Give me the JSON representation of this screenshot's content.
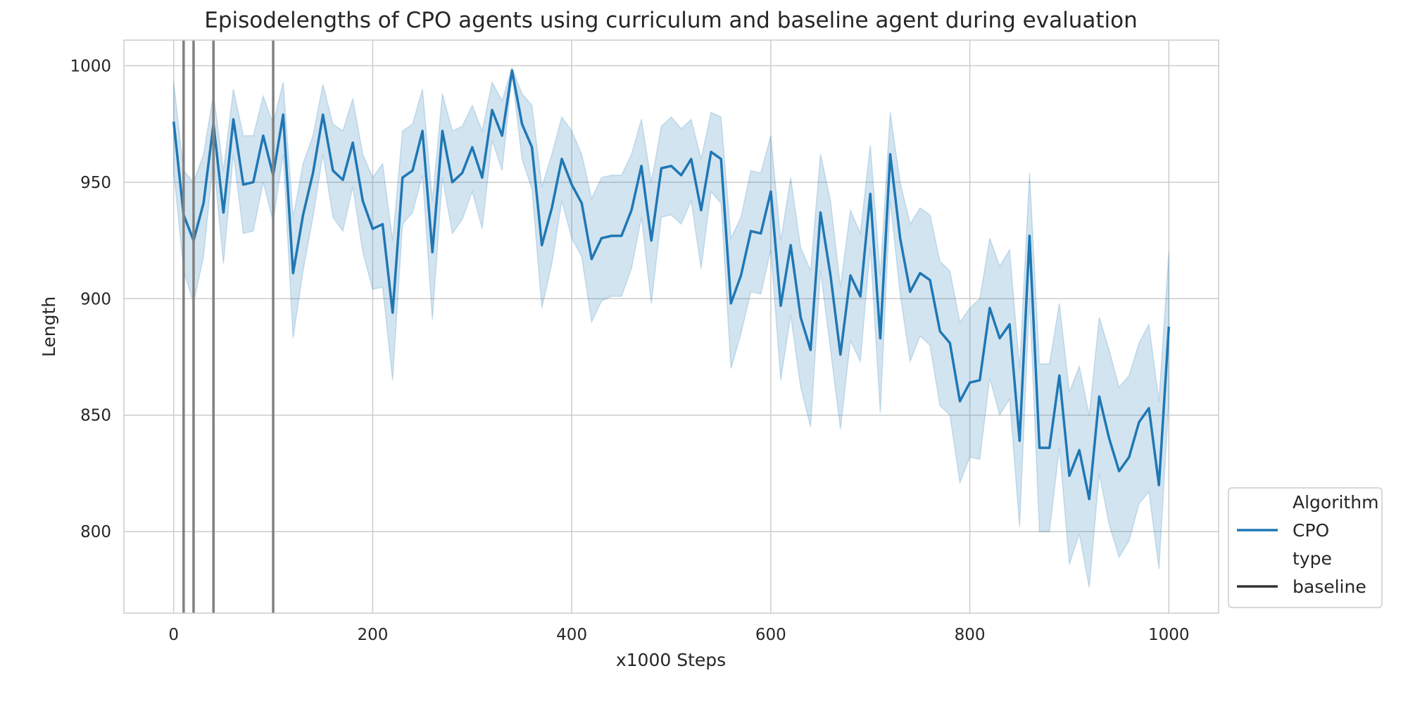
{
  "chart_data": {
    "type": "line",
    "title": "Episodelengths of CPO agents using curriculum and baseline agent during evaluation",
    "xlabel": "x1000 Steps",
    "ylabel": "Length",
    "xlim": [
      -50,
      1050
    ],
    "ylim": [
      765,
      1011
    ],
    "xticks": [
      0,
      200,
      400,
      600,
      800,
      1000
    ],
    "yticks": [
      800,
      850,
      900,
      950,
      1000
    ],
    "grid": true,
    "legend": {
      "position": "lower-right-outside",
      "entries": [
        {
          "label": "Algorithm",
          "kind": "header"
        },
        {
          "label": "CPO",
          "kind": "line",
          "color": "#1f77b4"
        },
        {
          "label": "type",
          "kind": "header"
        },
        {
          "label": "baseline",
          "kind": "line",
          "color": "#333333"
        }
      ]
    },
    "vlines": {
      "x": [
        10,
        20,
        40,
        100
      ],
      "color": "#808080"
    },
    "series": [
      {
        "name": "CPO",
        "color": "#1f77b4",
        "band_color": "#1f77b4",
        "x": [
          0,
          10,
          20,
          30,
          40,
          50,
          60,
          70,
          80,
          90,
          100,
          110,
          120,
          130,
          140,
          150,
          160,
          170,
          180,
          190,
          200,
          210,
          220,
          230,
          240,
          250,
          260,
          270,
          280,
          290,
          300,
          310,
          320,
          330,
          340,
          350,
          360,
          370,
          380,
          390,
          400,
          410,
          420,
          430,
          440,
          450,
          460,
          470,
          480,
          490,
          500,
          510,
          520,
          530,
          540,
          550,
          560,
          570,
          580,
          590,
          600,
          610,
          620,
          630,
          640,
          650,
          660,
          670,
          680,
          690,
          700,
          710,
          720,
          730,
          740,
          750,
          760,
          770,
          780,
          790,
          800,
          810,
          820,
          830,
          840,
          850,
          860,
          870,
          880,
          890,
          900,
          910,
          920,
          930,
          940,
          950,
          960,
          970,
          980,
          990,
          1000
        ],
        "values": [
          976,
          936,
          925,
          941,
          975,
          937,
          977,
          949,
          950,
          970,
          953,
          979,
          911,
          936,
          954,
          979,
          955,
          951,
          967,
          942,
          930,
          932,
          894,
          952,
          955,
          972,
          920,
          972,
          950,
          954,
          965,
          952,
          981,
          970,
          998,
          975,
          965,
          923,
          939,
          960,
          949,
          941,
          917,
          926,
          927,
          927,
          938,
          957,
          925,
          956,
          957,
          953,
          960,
          938,
          963,
          960,
          898,
          910,
          929,
          928,
          946,
          897,
          923,
          892,
          878,
          937,
          910,
          876,
          910,
          901,
          945,
          883,
          962,
          926,
          903,
          911,
          908,
          886,
          881,
          856,
          864,
          865,
          896,
          883,
          889,
          839,
          927,
          836,
          836,
          867,
          824,
          835,
          814,
          858,
          840,
          826,
          832,
          847,
          853,
          820,
          888
        ],
        "upper": [
          993,
          955,
          950,
          962,
          988,
          955,
          990,
          970,
          970,
          987,
          975,
          993,
          935,
          958,
          970,
          992,
          975,
          972,
          986,
          962,
          952,
          958,
          925,
          972,
          975,
          990,
          942,
          988,
          972,
          974,
          983,
          972,
          993,
          985,
          999,
          988,
          983,
          948,
          962,
          978,
          972,
          962,
          943,
          952,
          953,
          953,
          962,
          977,
          950,
          974,
          978,
          973,
          977,
          960,
          980,
          978,
          926,
          935,
          955,
          954,
          970,
          925,
          952,
          922,
          912,
          962,
          942,
          905,
          938,
          928,
          966,
          910,
          980,
          950,
          932,
          939,
          936,
          916,
          912,
          890,
          896,
          900,
          926,
          914,
          921,
          870,
          954,
          872,
          872,
          898,
          860,
          871,
          850,
          892,
          878,
          862,
          867,
          881,
          889,
          856,
          920
        ],
        "lower": [
          955,
          912,
          898,
          918,
          960,
          915,
          962,
          928,
          929,
          950,
          933,
          962,
          883,
          912,
          935,
          962,
          935,
          929,
          948,
          920,
          904,
          905,
          865,
          932,
          937,
          953,
          891,
          952,
          928,
          934,
          946,
          930,
          968,
          955,
          996,
          960,
          947,
          896,
          915,
          942,
          926,
          918,
          890,
          899,
          901,
          901,
          913,
          935,
          898,
          935,
          936,
          932,
          942,
          913,
          946,
          941,
          870,
          885,
          903,
          902,
          921,
          865,
          893,
          862,
          845,
          912,
          878,
          844,
          882,
          873,
          922,
          851,
          942,
          902,
          873,
          884,
          880,
          854,
          850,
          821,
          832,
          831,
          866,
          850,
          857,
          802,
          900,
          800,
          800,
          836,
          786,
          799,
          776,
          825,
          803,
          789,
          796,
          812,
          817,
          784,
          856
        ]
      }
    ]
  }
}
